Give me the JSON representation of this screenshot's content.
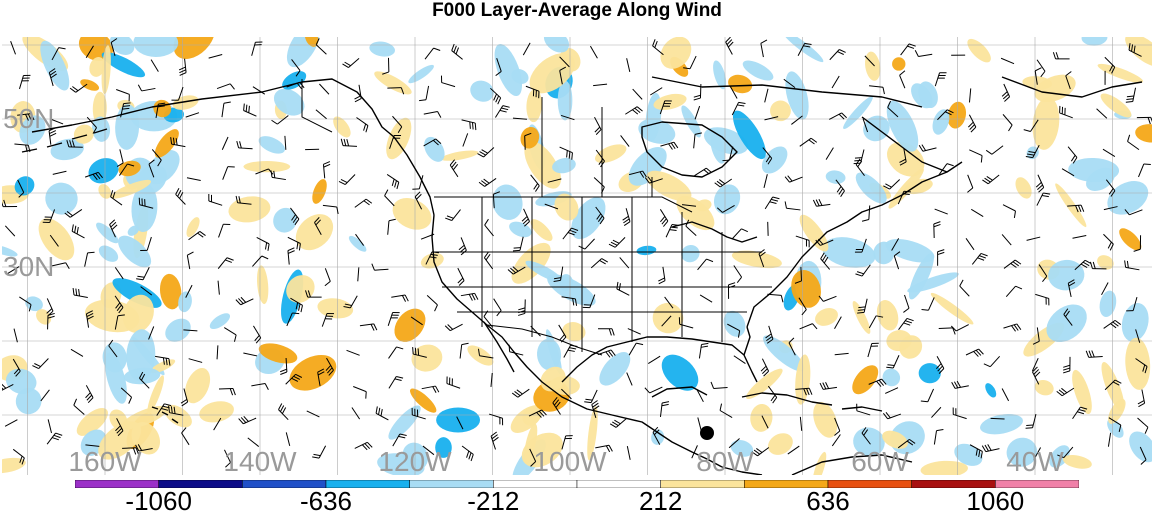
{
  "title": "F000 Layer-Average Along Wind",
  "lat_labels": [
    {
      "text": "50N",
      "lat": 50
    },
    {
      "text": "30N",
      "lat": 30
    }
  ],
  "lon_labels": [
    {
      "text": "160W",
      "lon": -160
    },
    {
      "text": "140W",
      "lon": -140
    },
    {
      "text": "120W",
      "lon": -120
    },
    {
      "text": "100W",
      "lon": -100
    },
    {
      "text": "80W",
      "lon": -80
    },
    {
      "text": "60W",
      "lon": -60
    },
    {
      "text": "40W",
      "lon": -40
    }
  ],
  "colorbar": {
    "colors": [
      "#9b30c8",
      "#0c0c88",
      "#2050c8",
      "#18b0ee",
      "#a8dcf4",
      "#ffffff",
      "#ffffff",
      "#fbe49c",
      "#f4a818",
      "#e85010",
      "#a81010",
      "#f080a8"
    ],
    "tick_labels": [
      "-1060",
      "-636",
      "-212",
      "212",
      "636",
      "1060"
    ]
  },
  "marker": {
    "type": "filled-circle",
    "color": "#000000"
  },
  "colors": {
    "land_outline": "#000000",
    "grid": "#aaaaaa",
    "pos_light": "#fbe49c",
    "pos_med": "#f4a818",
    "neg_light": "#a8dcf4",
    "neg_med": "#18b0ee",
    "wind_barb": "#000000"
  }
}
